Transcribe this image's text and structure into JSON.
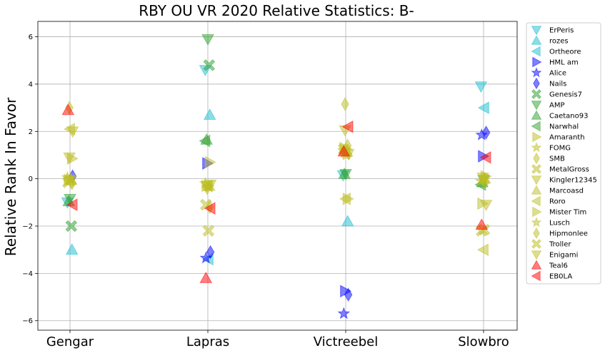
{
  "chart_data": {
    "type": "scatter",
    "title": "RBY OU VR 2020 Relative Statistics: B-",
    "xlabel": "",
    "ylabel": "Relative Rank In Favor",
    "categories": [
      "Gengar",
      "Lapras",
      "Victreebel",
      "Slowbro"
    ],
    "ylim": [
      -6.4,
      6.65
    ],
    "yticks": [
      -6,
      -4,
      -2,
      0,
      2,
      4,
      6
    ],
    "grid": true,
    "legend_position": "outside-right",
    "series": [
      {
        "name": "ErPeris",
        "marker": "triangle-down",
        "color": "#17becf",
        "values": [
          -1.0,
          4.6,
          0.15,
          3.9
        ]
      },
      {
        "name": "rozes",
        "marker": "triangle-up",
        "color": "#17becf",
        "values": [
          -3.0,
          2.7,
          -1.8,
          null
        ]
      },
      {
        "name": "Ortheore",
        "marker": "triangle-left",
        "color": "#17becf",
        "values": [
          null,
          -3.4,
          null,
          3.0
        ]
      },
      {
        "name": "HML am",
        "marker": "triangle-right",
        "color": "#0000ff",
        "values": [
          null,
          0.65,
          -4.75,
          0.95
        ]
      },
      {
        "name": "Alice",
        "marker": "star",
        "color": "#0000ff",
        "values": [
          null,
          -3.35,
          -5.7,
          1.85
        ]
      },
      {
        "name": "Nails",
        "marker": "diamond",
        "color": "#0000ff",
        "values": [
          0.1,
          -3.1,
          -4.9,
          1.95
        ]
      },
      {
        "name": "Genesis7",
        "marker": "x-cross",
        "color": "#2ca02c",
        "values": [
          -2.0,
          4.8,
          null,
          null
        ]
      },
      {
        "name": "AMP",
        "marker": "triangle-down",
        "color": "#2ca02c",
        "values": [
          -0.85,
          5.9,
          0.2,
          -0.05
        ]
      },
      {
        "name": "Caetano93",
        "marker": "triangle-up",
        "color": "#2ca02c",
        "values": [
          -0.95,
          1.65,
          0.2,
          -0.15
        ]
      },
      {
        "name": "Narwhal",
        "marker": "triangle-left",
        "color": "#2ca02c",
        "values": [
          null,
          1.6,
          null,
          -0.25
        ]
      },
      {
        "name": "Amaranth",
        "marker": "triangle-right",
        "color": "#bcbd22",
        "values": [
          0.85,
          0.7,
          -0.85,
          0.1
        ]
      },
      {
        "name": "FOMG",
        "marker": "star",
        "color": "#bcbd22",
        "values": [
          0.0,
          -0.35,
          1.0,
          0.0
        ]
      },
      {
        "name": "SMB",
        "marker": "diamond",
        "color": "#bcbd22",
        "values": [
          3.0,
          -0.4,
          3.15,
          -0.05
        ]
      },
      {
        "name": "MetalGross",
        "marker": "x-cross",
        "color": "#bcbd22",
        "values": [
          -0.15,
          -1.1,
          1.25,
          -2.2
        ]
      },
      {
        "name": "Kingler12345",
        "marker": "triangle-down",
        "color": "#bcbd22",
        "values": [
          2.0,
          -0.25,
          1.05,
          -1.1
        ]
      },
      {
        "name": "Marcoasd",
        "marker": "triangle-up",
        "color": "#bcbd22",
        "values": [
          -0.05,
          -0.3,
          1.15,
          0.0
        ]
      },
      {
        "name": "Roro",
        "marker": "triangle-left",
        "color": "#bcbd22",
        "values": [
          2.1,
          -0.3,
          -0.85,
          -3.0
        ]
      },
      {
        "name": "Mister Tim",
        "marker": "triangle-right",
        "color": "#bcbd22",
        "values": [
          -0.05,
          -0.3,
          1.3,
          -1.05
        ]
      },
      {
        "name": "Lusch",
        "marker": "star",
        "color": "#bcbd22",
        "values": [
          0.05,
          -0.2,
          1.2,
          -0.1
        ]
      },
      {
        "name": "Hipmonlee",
        "marker": "diamond",
        "color": "#bcbd22",
        "values": [
          -0.2,
          -1.2,
          1.4,
          -0.15
        ]
      },
      {
        "name": "Troller",
        "marker": "x-cross",
        "color": "#bcbd22",
        "values": [
          -0.05,
          -2.2,
          1.1,
          -2.15
        ]
      },
      {
        "name": "Enigami",
        "marker": "triangle-down",
        "color": "#bcbd22",
        "values": [
          0.9,
          -0.3,
          2.05,
          0.05
        ]
      },
      {
        "name": "Teal6",
        "marker": "triangle-up",
        "color": "#ff0000",
        "values": [
          2.9,
          -4.2,
          1.15,
          -1.95
        ]
      },
      {
        "name": "EB0LA",
        "marker": "triangle-left",
        "color": "#ff0000",
        "values": [
          -1.1,
          -1.25,
          2.2,
          0.9
        ]
      }
    ]
  }
}
